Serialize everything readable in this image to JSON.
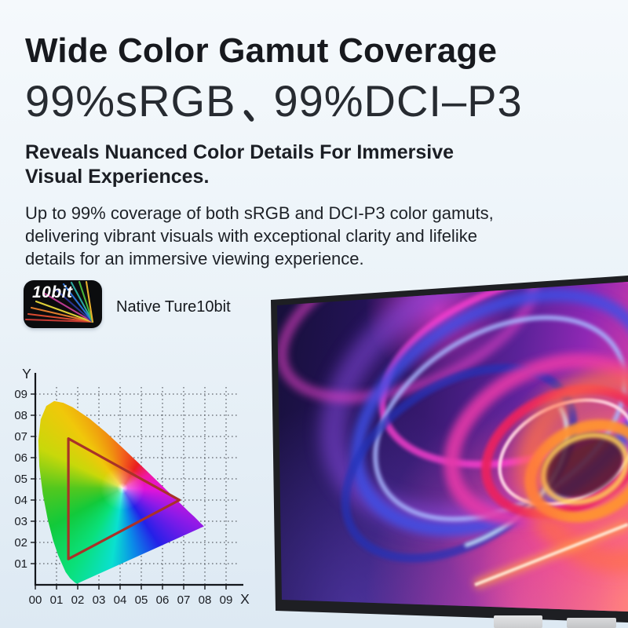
{
  "header": {
    "title": "Wide Color Gamut Coverage",
    "gamut_headline": "99%sRGB、99%DCI–P3",
    "gamut_left": "99%sRGB",
    "gamut_separator": "、",
    "gamut_right": "99%DCI–P3",
    "tagline": "Reveals Nuanced Color Details For Immersive Visual Experiences.",
    "description": "Up to 99% coverage of both sRGB and DCI-P3 color gamuts, delivering vibrant visuals with exceptional clarity and lifelike details for an immersive viewing experience."
  },
  "badge": {
    "label": "10bit",
    "caption": "Native Ture10bit"
  },
  "colors": {
    "background_top": "#f5f9fc",
    "background_bottom": "#dde9f3",
    "gamut_triangle": "#a83228",
    "badge_background": "#0b0c0e"
  },
  "chart_data": {
    "type": "area",
    "title": "CIE 1931 xy chromaticity diagram with display color gamut triangle",
    "xlabel": "X",
    "ylabel": "Y",
    "x_tick_labels": [
      "00",
      "01",
      "02",
      "03",
      "04",
      "05",
      "06",
      "07",
      "08",
      "09"
    ],
    "y_tick_labels": [
      "01",
      "02",
      "03",
      "04",
      "05",
      "06",
      "07",
      "08",
      "09"
    ],
    "xlim": [
      0,
      1.0
    ],
    "ylim": [
      0,
      1.0
    ],
    "grid": "dotted",
    "triangle_color": "#a83228",
    "gamut_triangle": [
      [
        0.156,
        0.69
      ],
      [
        0.156,
        0.122
      ],
      [
        0.68,
        0.4
      ]
    ],
    "spectral_locus": [
      [
        0.196,
        0.005
      ],
      [
        0.186,
        0.011
      ],
      [
        0.164,
        0.031
      ],
      [
        0.143,
        0.06
      ],
      [
        0.108,
        0.138
      ],
      [
        0.084,
        0.209
      ],
      [
        0.059,
        0.307
      ],
      [
        0.035,
        0.429
      ],
      [
        0.019,
        0.56
      ],
      [
        0.014,
        0.681
      ],
      [
        0.025,
        0.78
      ],
      [
        0.052,
        0.844
      ],
      [
        0.089,
        0.867
      ],
      [
        0.132,
        0.859
      ],
      [
        0.176,
        0.838
      ],
      [
        0.256,
        0.784
      ],
      [
        0.333,
        0.72
      ],
      [
        0.409,
        0.649
      ],
      [
        0.485,
        0.577
      ],
      [
        0.558,
        0.506
      ],
      [
        0.625,
        0.441
      ],
      [
        0.681,
        0.387
      ],
      [
        0.722,
        0.347
      ],
      [
        0.75,
        0.321
      ],
      [
        0.779,
        0.292
      ],
      [
        0.796,
        0.276
      ]
    ]
  }
}
